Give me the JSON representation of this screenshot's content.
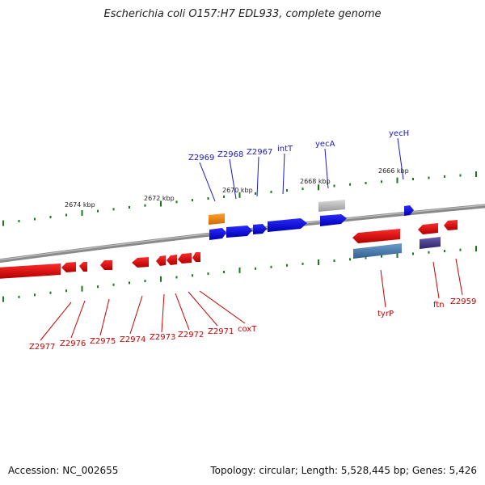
{
  "header": {
    "title": "Escherichia coli O157:H7 EDL933, complete genome"
  },
  "footer": {
    "accession": "Accession: NC_002655",
    "summary": "Topology: circular; Length: 5,528,445 bp; Genes: 5,426"
  },
  "scale": {
    "kbp_labels": [
      "2674 kbp",
      "2672 kbp",
      "2670 kbp",
      "2668 kbp",
      "2666 kbp"
    ]
  },
  "genes_top": [
    "Z2969",
    "Z2968",
    "Z2967",
    "intT",
    "yecA",
    "yecH"
  ],
  "genes_bottom": [
    "Z2977",
    "Z2976",
    "Z2975",
    "Z2974",
    "Z2973",
    "Z2972",
    "Z2971",
    "coxT",
    "tyrP",
    "ftn",
    "Z2959"
  ],
  "colors": {
    "forward": "#0000ee",
    "reverse": "#ee0000",
    "ticks": "#1a7a1a",
    "backbone": "#808080",
    "rna": "#ff8c00",
    "pseudo": "#bbbbbb",
    "tyrP": "#4a7fb0",
    "other": "#4a3c8c"
  }
}
